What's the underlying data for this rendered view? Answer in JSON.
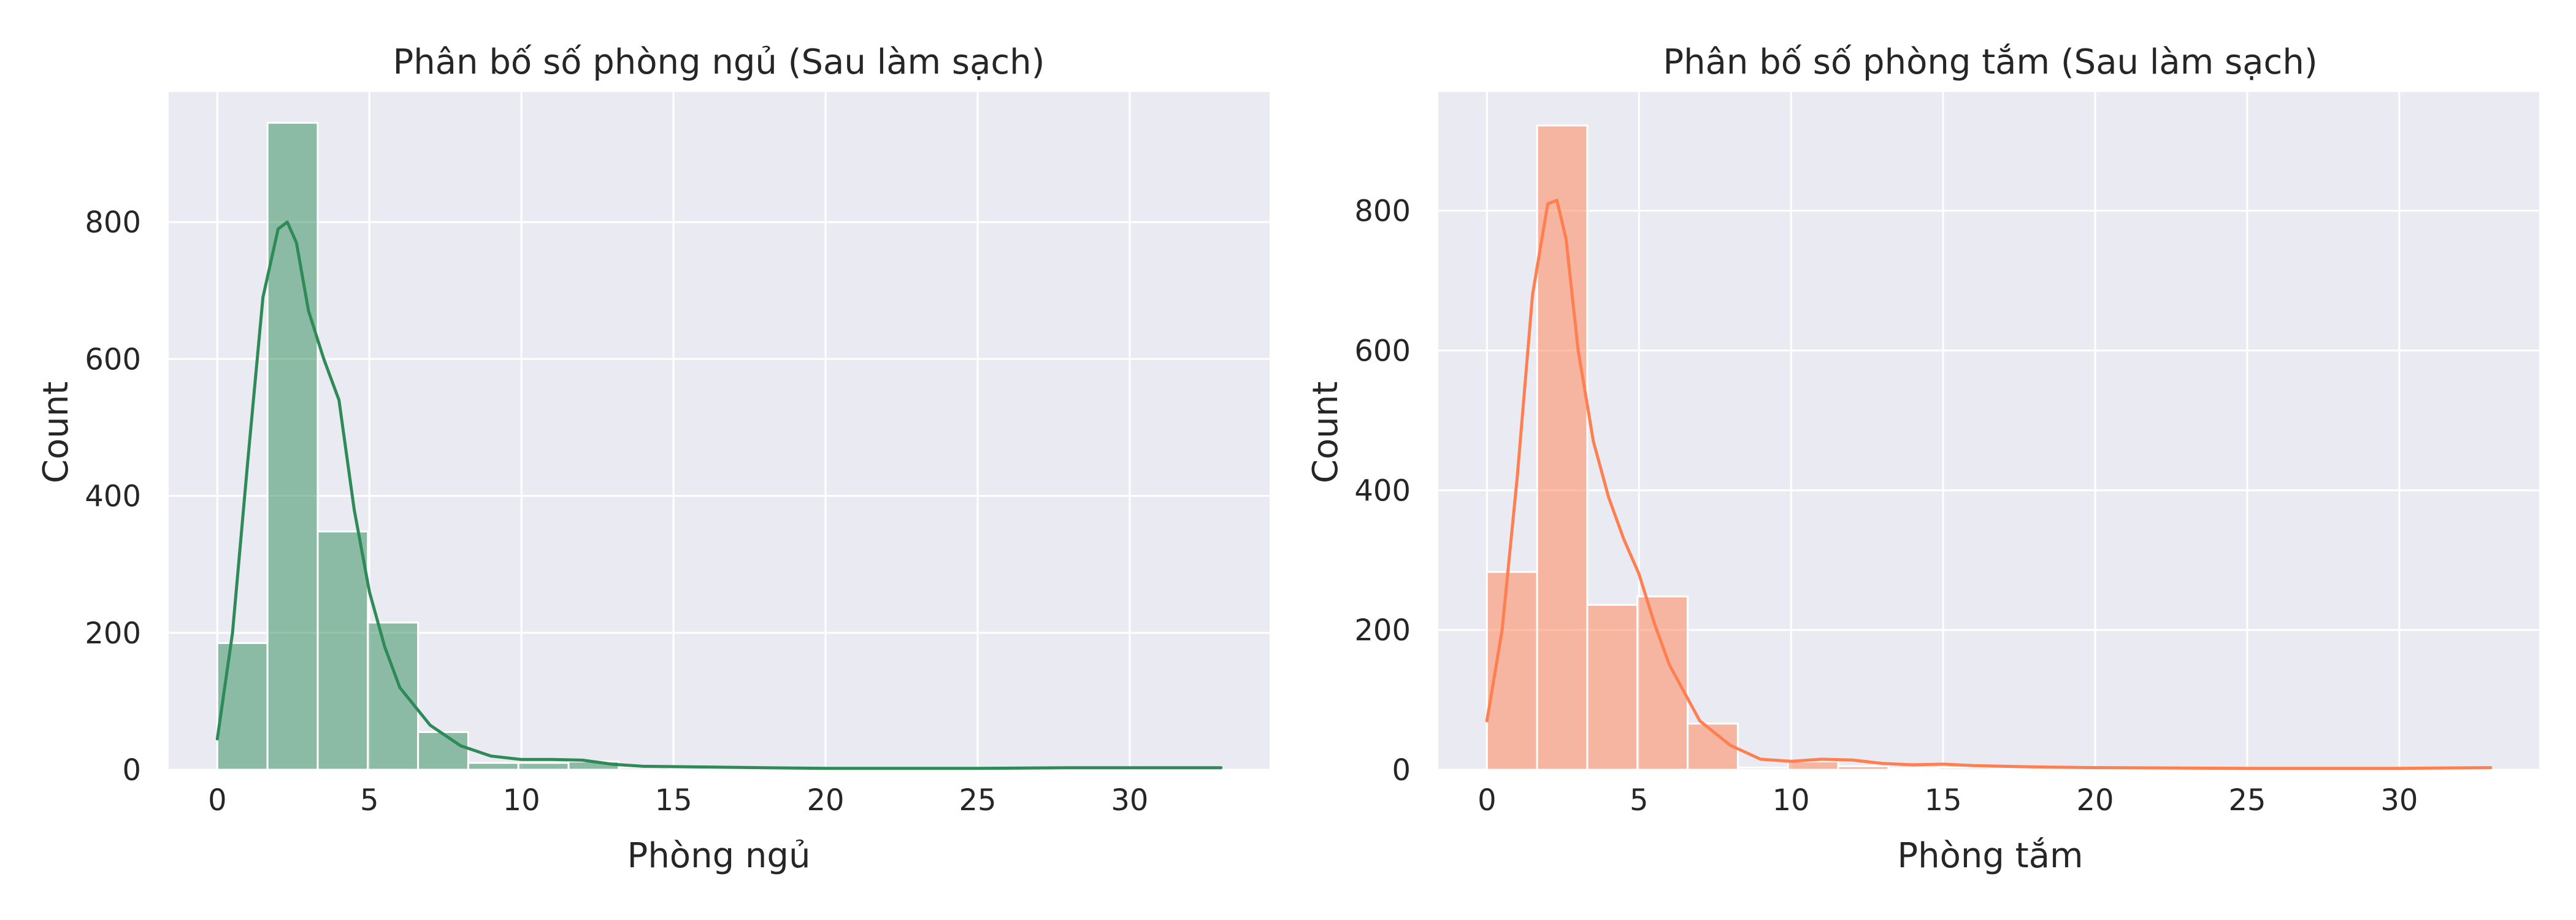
{
  "chart_data": [
    {
      "type": "bar",
      "title": "Phân bố số phòng ngủ (Sau làm sạch)",
      "xlabel": "Phòng ngủ",
      "ylabel": "Count",
      "xlim": [
        -1.6,
        34.6
      ],
      "ylim": [
        0,
        990
      ],
      "xticks": [
        0,
        5,
        10,
        15,
        20,
        25,
        30
      ],
      "yticks": [
        0,
        200,
        400,
        600,
        800
      ],
      "grid": true,
      "bar_color": "#2e8b57",
      "line_color": "#2e8b57",
      "bins": [
        {
          "x0": 0.0,
          "x1": 1.65,
          "count": 185
        },
        {
          "x0": 1.65,
          "x1": 3.3,
          "count": 945
        },
        {
          "x0": 3.3,
          "x1": 4.95,
          "count": 348
        },
        {
          "x0": 4.95,
          "x1": 6.6,
          "count": 215
        },
        {
          "x0": 6.6,
          "x1": 8.25,
          "count": 55
        },
        {
          "x0": 8.25,
          "x1": 9.9,
          "count": 10
        },
        {
          "x0": 9.9,
          "x1": 11.55,
          "count": 10
        },
        {
          "x0": 11.55,
          "x1": 13.2,
          "count": 12
        },
        {
          "x0": 13.2,
          "x1": 14.85,
          "count": 3
        },
        {
          "x0": 14.85,
          "x1": 16.5,
          "count": 2
        },
        {
          "x0": 16.5,
          "x1": 18.15,
          "count": 2
        },
        {
          "x0": 18.15,
          "x1": 19.8,
          "count": 1
        },
        {
          "x0": 19.8,
          "x1": 21.45,
          "count": 1
        },
        {
          "x0": 21.45,
          "x1": 23.1,
          "count": 0
        },
        {
          "x0": 23.1,
          "x1": 24.75,
          "count": 1
        },
        {
          "x0": 24.75,
          "x1": 26.4,
          "count": 0
        },
        {
          "x0": 26.4,
          "x1": 28.05,
          "count": 1
        },
        {
          "x0": 28.05,
          "x1": 29.7,
          "count": 1
        },
        {
          "x0": 29.7,
          "x1": 31.35,
          "count": 1
        },
        {
          "x0": 31.35,
          "x1": 33.0,
          "count": 1
        }
      ],
      "kde": [
        [
          0,
          45
        ],
        [
          0.5,
          200
        ],
        [
          1,
          450
        ],
        [
          1.5,
          690
        ],
        [
          2,
          790
        ],
        [
          2.3,
          800
        ],
        [
          2.6,
          770
        ],
        [
          3,
          670
        ],
        [
          3.5,
          600
        ],
        [
          4,
          540
        ],
        [
          4.5,
          380
        ],
        [
          5,
          260
        ],
        [
          5.5,
          180
        ],
        [
          6,
          120
        ],
        [
          7,
          65
        ],
        [
          8,
          35
        ],
        [
          9,
          20
        ],
        [
          10,
          15
        ],
        [
          11,
          15
        ],
        [
          12,
          14
        ],
        [
          13,
          8
        ],
        [
          14,
          5
        ],
        [
          16,
          4
        ],
        [
          18,
          3
        ],
        [
          20,
          2
        ],
        [
          25,
          2
        ],
        [
          28,
          3
        ],
        [
          30,
          3
        ],
        [
          33,
          3
        ]
      ]
    },
    {
      "type": "bar",
      "title": "Phân bố số phòng tắm (Sau làm sạch)",
      "xlabel": "Phòng tắm",
      "ylabel": "Count",
      "xlim": [
        -1.6,
        34.6
      ],
      "ylim": [
        0,
        970
      ],
      "xticks": [
        0,
        5,
        10,
        15,
        20,
        25,
        30
      ],
      "yticks": [
        0,
        200,
        400,
        600,
        800
      ],
      "grid": true,
      "bar_color": "#ff7f50",
      "line_color": "#ff7f50",
      "bins": [
        {
          "x0": 0.0,
          "x1": 1.65,
          "count": 283
        },
        {
          "x0": 1.65,
          "x1": 3.3,
          "count": 922
        },
        {
          "x0": 3.3,
          "x1": 4.95,
          "count": 236
        },
        {
          "x0": 4.95,
          "x1": 6.6,
          "count": 248
        },
        {
          "x0": 6.6,
          "x1": 8.25,
          "count": 66
        },
        {
          "x0": 8.25,
          "x1": 9.9,
          "count": 3
        },
        {
          "x0": 9.9,
          "x1": 11.55,
          "count": 12
        },
        {
          "x0": 11.55,
          "x1": 13.2,
          "count": 5
        },
        {
          "x0": 13.2,
          "x1": 14.85,
          "count": 2
        },
        {
          "x0": 14.85,
          "x1": 16.5,
          "count": 3
        },
        {
          "x0": 16.5,
          "x1": 18.15,
          "count": 1
        },
        {
          "x0": 18.15,
          "x1": 19.8,
          "count": 1
        },
        {
          "x0": 19.8,
          "x1": 21.45,
          "count": 1
        },
        {
          "x0": 21.45,
          "x1": 23.1,
          "count": 1
        },
        {
          "x0": 23.1,
          "x1": 24.75,
          "count": 0
        },
        {
          "x0": 24.75,
          "x1": 26.4,
          "count": 1
        },
        {
          "x0": 26.4,
          "x1": 28.05,
          "count": 0
        },
        {
          "x0": 28.05,
          "x1": 29.7,
          "count": 1
        },
        {
          "x0": 29.7,
          "x1": 31.35,
          "count": 1
        },
        {
          "x0": 31.35,
          "x1": 33.0,
          "count": 1
        }
      ],
      "kde": [
        [
          0,
          70
        ],
        [
          0.5,
          200
        ],
        [
          1,
          420
        ],
        [
          1.5,
          680
        ],
        [
          2,
          810
        ],
        [
          2.3,
          815
        ],
        [
          2.6,
          760
        ],
        [
          3,
          600
        ],
        [
          3.5,
          470
        ],
        [
          4,
          390
        ],
        [
          4.5,
          330
        ],
        [
          5,
          280
        ],
        [
          5.5,
          210
        ],
        [
          6,
          150
        ],
        [
          7,
          70
        ],
        [
          8,
          35
        ],
        [
          9,
          15
        ],
        [
          10,
          12
        ],
        [
          11,
          15
        ],
        [
          12,
          14
        ],
        [
          13,
          9
        ],
        [
          14,
          7
        ],
        [
          15,
          8
        ],
        [
          16,
          6
        ],
        [
          18,
          4
        ],
        [
          20,
          3
        ],
        [
          25,
          2
        ],
        [
          28,
          2
        ],
        [
          30,
          2
        ],
        [
          33,
          3
        ]
      ]
    }
  ]
}
